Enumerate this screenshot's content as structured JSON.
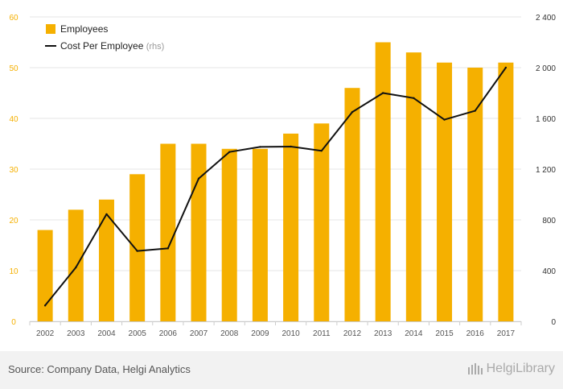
{
  "chart_data": {
    "type": "bar",
    "categories": [
      "2002",
      "2003",
      "2004",
      "2005",
      "2006",
      "2007",
      "2008",
      "2009",
      "2010",
      "2011",
      "2012",
      "2013",
      "2014",
      "2015",
      "2016",
      "2017"
    ],
    "series": [
      {
        "name": "Employees",
        "type": "bar",
        "axis": "left",
        "color": "#f5b000",
        "values": [
          18,
          22,
          24,
          29,
          35,
          35,
          34,
          34,
          37,
          39,
          46,
          55,
          53,
          51,
          50,
          51
        ]
      },
      {
        "name": "Cost Per Employee",
        "type": "line",
        "axis": "right",
        "color": "#111111",
        "values": [
          125,
          425,
          845,
          555,
          575,
          1125,
          1335,
          1375,
          1378,
          1345,
          1650,
          1800,
          1760,
          1590,
          1660,
          2000
        ]
      }
    ],
    "legend": {
      "items": [
        {
          "label": "Employees"
        },
        {
          "label": "Cost Per Employee",
          "suffix": "(rhs)"
        }
      ],
      "position": "top-left"
    },
    "y_left": {
      "ylim": [
        0,
        60
      ],
      "ticks": [
        "0",
        "10",
        "20",
        "30",
        "40",
        "50",
        "60"
      ],
      "tick_values": [
        0,
        10,
        20,
        30,
        40,
        50,
        60
      ],
      "color": "#f5b000"
    },
    "y_right": {
      "ylim": [
        0,
        2400
      ],
      "ticks": [
        "0",
        "400",
        "800",
        "1 200",
        "1 600",
        "2 000",
        "2 400"
      ],
      "tick_values": [
        0,
        400,
        800,
        1200,
        1600,
        2000,
        2400
      ]
    },
    "grid": true,
    "title": "",
    "xlabel": "",
    "ylabel": ""
  },
  "footer": {
    "source": "Source: Company Data, Helgi Analytics",
    "brand": "HelgiLibrary"
  }
}
